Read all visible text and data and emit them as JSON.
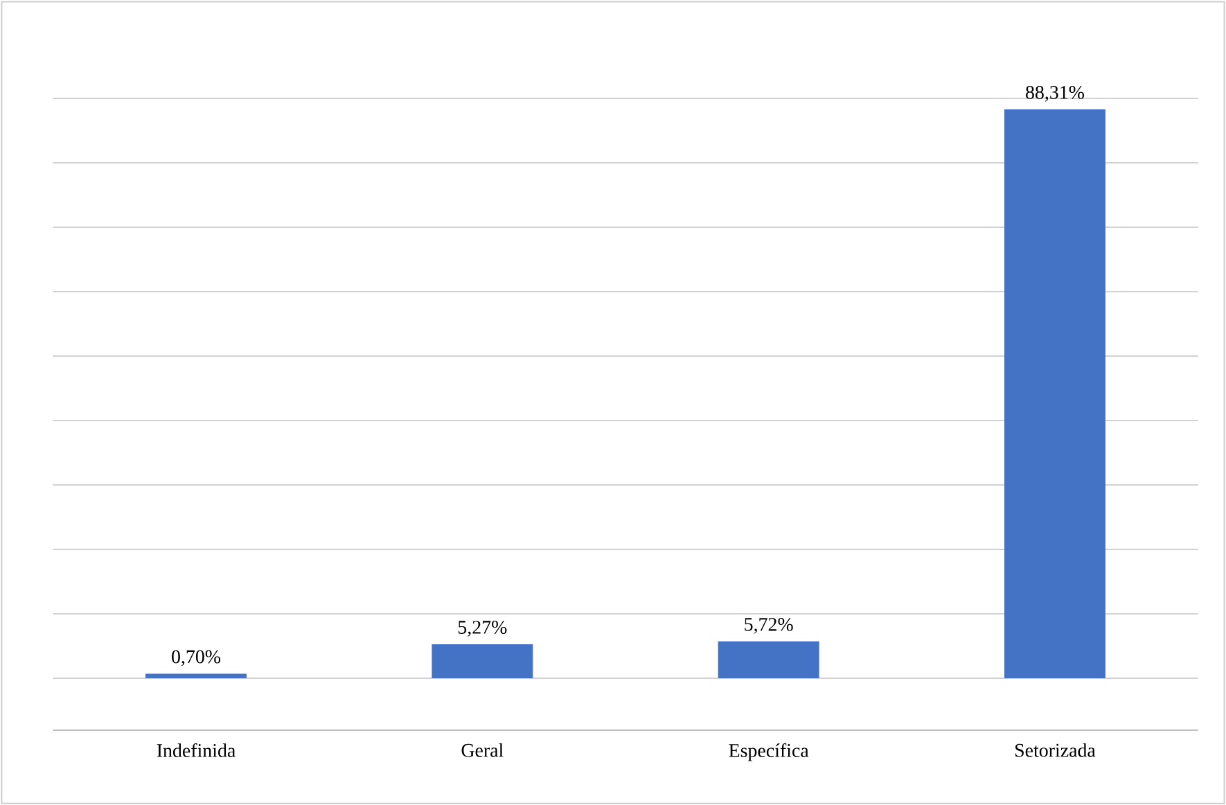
{
  "chart_data": {
    "type": "bar",
    "categories": [
      "Indefinida",
      "Geral",
      "Específica",
      "Setorizada"
    ],
    "values": [
      0.7,
      5.27,
      5.72,
      88.31
    ],
    "value_labels": [
      "0,70%",
      "5,27%",
      "5,72%",
      "88,31%"
    ],
    "color": "#4472c4",
    "tick_labels": "x",
    "grid": "y"
  }
}
